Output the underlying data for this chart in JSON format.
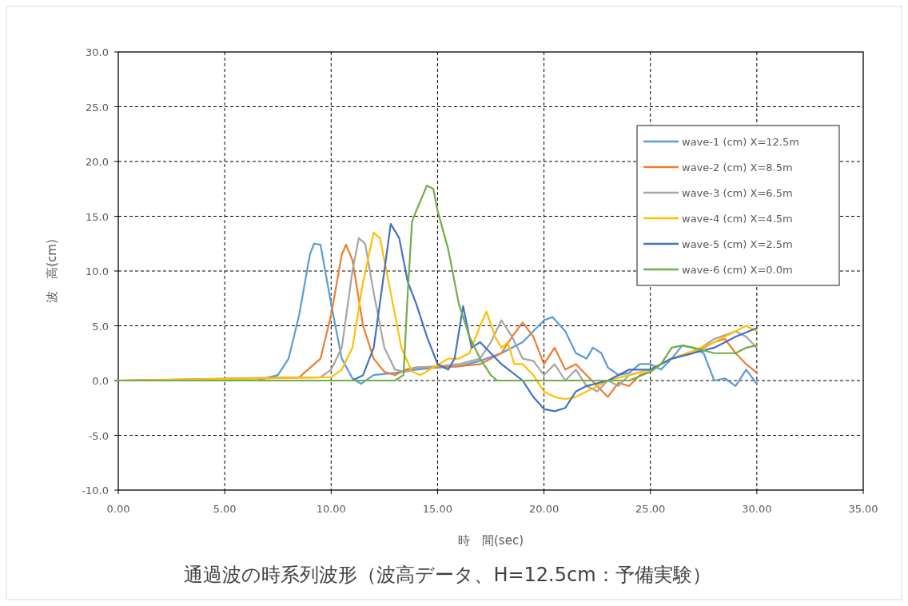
{
  "chart_data": {
    "type": "line",
    "title": "通過波の時系列波形（波高データ、H=12.5cm：予備実験）",
    "xlabel": "時　間(sec)",
    "ylabel": "波　高(cm)",
    "xlim": [
      0,
      35
    ],
    "ylim": [
      -10,
      30
    ],
    "xticks": [
      {
        "value": 0,
        "label": "0.00"
      },
      {
        "value": 5,
        "label": "5.00"
      },
      {
        "value": 10,
        "label": "10.00"
      },
      {
        "value": 15,
        "label": "15.00"
      },
      {
        "value": 20,
        "label": "20.00"
      },
      {
        "value": 25,
        "label": "25.00"
      },
      {
        "value": 30,
        "label": "30.00"
      },
      {
        "value": 35,
        "label": "35.00"
      }
    ],
    "yticks": [
      {
        "value": -10,
        "label": "-10.0"
      },
      {
        "value": -5,
        "label": "-5.0"
      },
      {
        "value": 0,
        "label": "0.0"
      },
      {
        "value": 5,
        "label": "5.0"
      },
      {
        "value": 10,
        "label": "10.0"
      },
      {
        "value": 15,
        "label": "15.0"
      },
      {
        "value": 20,
        "label": "20.0"
      },
      {
        "value": 25,
        "label": "25.0"
      },
      {
        "value": 30,
        "label": "30.0"
      }
    ],
    "grid": true,
    "legend": "top right",
    "line_style": "solid",
    "series": [
      {
        "name": "wave-1 (cm) X=12.5m",
        "color": "#5b9bd5",
        "x": [
          0,
          6.5,
          7.5,
          8,
          8.5,
          9,
          9.2,
          9.5,
          10,
          10.5,
          11,
          11.4,
          12,
          13,
          14,
          15,
          16,
          17,
          18,
          19,
          19.5,
          20,
          20.4,
          21,
          21.5,
          22,
          22.3,
          22.7,
          23,
          23.5,
          24,
          24.5,
          25,
          25.5,
          26,
          26.5,
          27,
          27.5,
          28,
          28.5,
          29,
          29.5,
          30
        ],
        "values": [
          0,
          0,
          0.5,
          2,
          6,
          11.5,
          12.5,
          12.4,
          7,
          2,
          0.2,
          -0.3,
          0.5,
          0.7,
          1,
          1.2,
          1.3,
          1.8,
          2.5,
          3.5,
          4.5,
          5.5,
          5.8,
          4.5,
          2.5,
          2,
          3,
          2.5,
          1.2,
          0.5,
          0.7,
          1.5,
          1.5,
          1,
          2,
          3.2,
          3,
          2.5,
          0,
          0.2,
          -0.5,
          1,
          -0.3
        ]
      },
      {
        "name": "wave-2 (cm) X=8.5m",
        "color": "#ed7d31",
        "x": [
          0,
          8.5,
          9.5,
          10,
          10.5,
          10.7,
          11,
          11.5,
          12,
          12.5,
          13,
          13.5,
          14,
          15,
          16,
          17,
          18,
          18.5,
          19,
          19.5,
          20,
          20.5,
          21,
          21.5,
          22,
          22.5,
          23,
          23.5,
          24,
          24.5,
          25,
          25.5,
          26,
          27,
          28,
          28.5,
          29,
          29.5,
          30
        ],
        "values": [
          0,
          0.3,
          2,
          6,
          11.5,
          12.4,
          11,
          5,
          2,
          0.8,
          0.5,
          1,
          1.2,
          1.2,
          1.3,
          1.5,
          2.5,
          4,
          5.3,
          4,
          1.5,
          3,
          1,
          1.5,
          0.5,
          -0.5,
          -1.5,
          -0.2,
          -0.5,
          0.5,
          0.8,
          1.5,
          2,
          2.5,
          3.5,
          3.8,
          2.5,
          1.5,
          0.7
        ]
      },
      {
        "name": "wave-3 (cm) X=6.5m",
        "color": "#a5a5a5",
        "x": [
          0,
          9.5,
          10,
          10.5,
          11,
          11.3,
          11.6,
          12,
          12.5,
          13,
          13.5,
          14,
          15,
          16,
          17,
          17.5,
          18,
          18.5,
          19,
          19.5,
          20,
          20.5,
          21,
          21.5,
          22,
          22.5,
          23,
          23.5,
          24,
          25,
          26,
          27,
          28,
          29,
          29.5,
          30
        ],
        "values": [
          0,
          0.3,
          1,
          3,
          10,
          13,
          12.5,
          8,
          3,
          1,
          0.8,
          1.2,
          1.3,
          1.5,
          2,
          3.5,
          5.5,
          4,
          2,
          1.8,
          0.5,
          1.5,
          0,
          1,
          -0.5,
          -1,
          0,
          -0.5,
          0.5,
          1,
          2,
          2.5,
          3.8,
          4.5,
          4,
          3
        ]
      },
      {
        "name": "wave-4 (cm) X=4.5m",
        "color": "#ffc000",
        "x": [
          0,
          10,
          10.5,
          11,
          11.5,
          12,
          12.3,
          12.8,
          13.3,
          13.8,
          14.2,
          14.8,
          15.5,
          16,
          16.5,
          17,
          17.3,
          17.7,
          18,
          18.3,
          18.6,
          19,
          19.5,
          20,
          20.5,
          21,
          21.5,
          22,
          23,
          24,
          25,
          26,
          27,
          28,
          29,
          29.5,
          30
        ],
        "values": [
          0,
          0.3,
          1,
          3,
          9,
          13.5,
          13,
          8,
          3,
          0.8,
          0.5,
          1.2,
          2,
          2,
          2.5,
          5,
          6.3,
          4,
          3,
          3.5,
          1.5,
          1.5,
          0.5,
          -1,
          -1.5,
          -1.7,
          -1.5,
          -1,
          0,
          0.5,
          1,
          2,
          2.7,
          3.5,
          4.5,
          5,
          4.5
        ]
      },
      {
        "name": "wave-5 (cm) X=2.5m",
        "color": "#4472c4",
        "x": [
          0,
          11,
          11.5,
          12,
          12.5,
          12.8,
          13.2,
          13.6,
          14,
          14.5,
          15,
          15.5,
          15.8,
          16.2,
          16.6,
          17,
          17.5,
          18,
          19,
          19.5,
          20,
          20.5,
          21,
          21.5,
          22,
          23,
          24,
          25,
          26,
          27,
          28,
          29,
          30
        ],
        "values": [
          0,
          0,
          0.5,
          3,
          10,
          14.3,
          13,
          9,
          7,
          4,
          1.5,
          1,
          2,
          6.8,
          3,
          3.5,
          2.5,
          1.5,
          0,
          -1.5,
          -2.6,
          -2.8,
          -2.5,
          -1,
          -0.5,
          0,
          1,
          1,
          2,
          2.5,
          3,
          4,
          4.8
        ]
      },
      {
        "name": "wave-6 (cm) X=0.0m",
        "color": "#70ad47",
        "x": [
          0,
          13,
          13.4,
          13.6,
          13.8,
          14,
          14.5,
          14.8,
          15,
          15.5,
          16,
          16.5,
          17,
          17.5,
          17.8,
          24,
          25,
          25.5,
          26,
          26.5,
          27,
          28,
          28.5,
          29,
          29.5,
          30
        ],
        "values": [
          0,
          0,
          0.5,
          8,
          14.5,
          15.5,
          17.8,
          17.5,
          15.5,
          12,
          7,
          4,
          2,
          0.5,
          0,
          0,
          0.8,
          1.5,
          3,
          3.2,
          3,
          2.5,
          2.5,
          2.5,
          3,
          3.2
        ]
      }
    ]
  }
}
